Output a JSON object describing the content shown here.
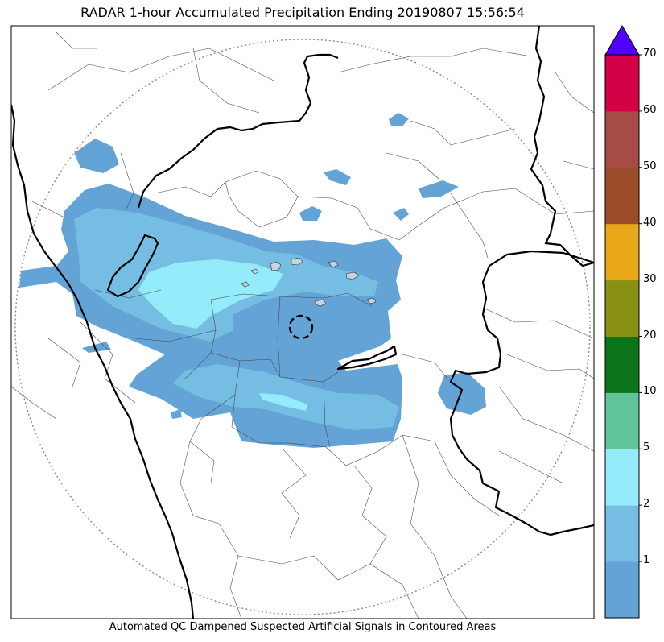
{
  "title": "RADAR 1-hour Accumulated Precipitation Ending 20190807 15:56:54",
  "footer": "Automated QC Dampened Suspected Artificial Signals in Contoured Areas",
  "colorbar": {
    "levels": [
      {
        "label": "",
        "color": "#63a3d6"
      },
      {
        "label": "1",
        "color": "#76bde3"
      },
      {
        "label": "2",
        "color": "#94ecfb"
      },
      {
        "label": "5",
        "color": "#5fc49a"
      },
      {
        "label": "10",
        "color": "#0c7418"
      },
      {
        "label": "20",
        "color": "#899114"
      },
      {
        "label": "30",
        "color": "#e8a818"
      },
      {
        "label": "40",
        "color": "#9b4c29"
      },
      {
        "label": "50",
        "color": "#a64c44"
      },
      {
        "label": "60",
        "color": "#d40046"
      }
    ],
    "top_label": "70",
    "extend_color": "#5000ff"
  },
  "colors": {
    "light_rain": "#63a3d6",
    "moderate_rain": "#76bde3",
    "heavy_rain": "#94ecfb"
  }
}
